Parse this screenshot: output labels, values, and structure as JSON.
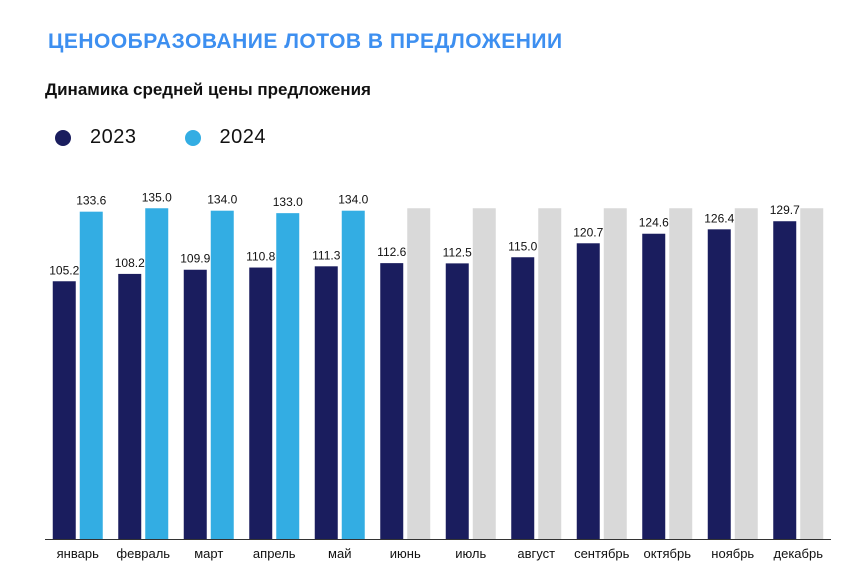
{
  "header": {
    "title": "ЦЕНООБРАЗОВАНИЕ ЛОТОВ В ПРЕДЛОЖЕНИИ",
    "subtitle": "Динамика средней цены предложения"
  },
  "colors": {
    "series_2023": "#1a1d5e",
    "series_2024": "#33ade3",
    "placeholder": "#d9d9d9",
    "axis": "#333333"
  },
  "chart_data": {
    "type": "bar",
    "title": "Динамика средней цены предложения",
    "xlabel": "",
    "ylabel": "",
    "ylim": [
      0,
      140
    ],
    "grid": false,
    "legend_position": "top-left",
    "categories": [
      "январь",
      "февраль",
      "март",
      "апрель",
      "май",
      "июнь",
      "июль",
      "август",
      "сентябрь",
      "октябрь",
      "ноябрь",
      "декабрь"
    ],
    "series": [
      {
        "name": "2023",
        "values": [
          105.2,
          108.2,
          109.9,
          110.8,
          111.3,
          112.6,
          112.5,
          115.0,
          120.7,
          124.6,
          126.4,
          129.7
        ]
      },
      {
        "name": "2024",
        "values": [
          133.6,
          135.0,
          134.0,
          133.0,
          134.0,
          null,
          null,
          null,
          null,
          null,
          null,
          null
        ]
      }
    ],
    "placeholder_value": 135.0
  }
}
